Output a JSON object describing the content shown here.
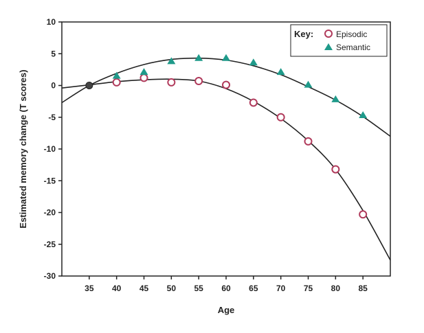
{
  "chart_data": {
    "type": "scatter",
    "title": "",
    "xlabel": "Age",
    "ylabel": "Estimated memory change (T scores)",
    "xlim": [
      30,
      90
    ],
    "ylim": [
      -30,
      10
    ],
    "x_ticks": [
      35,
      40,
      45,
      50,
      55,
      60,
      65,
      70,
      75,
      80,
      85
    ],
    "y_ticks": [
      10,
      5,
      0,
      -5,
      -10,
      -15,
      -20,
      -25,
      -30
    ],
    "legend": {
      "title": "Key:",
      "position": "top-right",
      "entries": [
        {
          "name": "Episodic",
          "marker": "open-circle",
          "color": "#b03a5b"
        },
        {
          "name": "Semantic",
          "marker": "filled-triangle",
          "color": "#1f9a8a"
        }
      ]
    },
    "baseline_point": {
      "x": 35,
      "y": 0,
      "color": "#444444"
    },
    "series": [
      {
        "name": "Episodic",
        "marker": "open-circle",
        "color": "#b03a5b",
        "points": [
          {
            "x": 40,
            "y": 0.5
          },
          {
            "x": 45,
            "y": 1.2
          },
          {
            "x": 50,
            "y": 0.5
          },
          {
            "x": 55,
            "y": 0.7
          },
          {
            "x": 60,
            "y": 0.1
          },
          {
            "x": 65,
            "y": -2.7
          },
          {
            "x": 70,
            "y": -5.0
          },
          {
            "x": 75,
            "y": -8.8
          },
          {
            "x": 80,
            "y": -13.2
          },
          {
            "x": 85,
            "y": -20.3
          }
        ],
        "fit_curve": [
          {
            "x": 30,
            "y": -0.4
          },
          {
            "x": 35,
            "y": 0.1
          },
          {
            "x": 40,
            "y": 0.6
          },
          {
            "x": 45,
            "y": 0.9
          },
          {
            "x": 50,
            "y": 1.0
          },
          {
            "x": 55,
            "y": 0.7
          },
          {
            "x": 60,
            "y": -0.5
          },
          {
            "x": 65,
            "y": -2.5
          },
          {
            "x": 70,
            "y": -5.2
          },
          {
            "x": 75,
            "y": -8.7
          },
          {
            "x": 80,
            "y": -13.2
          },
          {
            "x": 85,
            "y": -19.7
          },
          {
            "x": 90,
            "y": -27.5
          }
        ]
      },
      {
        "name": "Semantic",
        "marker": "filled-triangle",
        "color": "#1f9a8a",
        "points": [
          {
            "x": 40,
            "y": 1.5
          },
          {
            "x": 45,
            "y": 2.1
          },
          {
            "x": 50,
            "y": 3.8
          },
          {
            "x": 55,
            "y": 4.3
          },
          {
            "x": 60,
            "y": 4.3
          },
          {
            "x": 65,
            "y": 3.6
          },
          {
            "x": 70,
            "y": 2.1
          },
          {
            "x": 75,
            "y": 0.1
          },
          {
            "x": 80,
            "y": -2.2
          },
          {
            "x": 85,
            "y": -4.7
          }
        ],
        "fit_curve": [
          {
            "x": 30,
            "y": -2.7
          },
          {
            "x": 35,
            "y": 0.0
          },
          {
            "x": 40,
            "y": 1.9
          },
          {
            "x": 45,
            "y": 3.3
          },
          {
            "x": 50,
            "y": 4.1
          },
          {
            "x": 55,
            "y": 4.3
          },
          {
            "x": 60,
            "y": 4.0
          },
          {
            "x": 65,
            "y": 3.1
          },
          {
            "x": 70,
            "y": 1.7
          },
          {
            "x": 75,
            "y": -0.2
          },
          {
            "x": 80,
            "y": -2.3
          },
          {
            "x": 85,
            "y": -4.9
          },
          {
            "x": 90,
            "y": -8.0
          }
        ]
      }
    ]
  }
}
